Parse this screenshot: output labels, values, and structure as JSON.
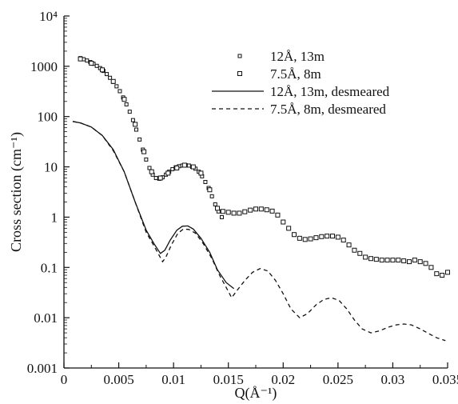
{
  "chart_data": {
    "type": "scatter",
    "title": "",
    "xlabel": "Q(Å⁻¹)",
    "ylabel": "Cross section (cm⁻¹)",
    "xlim": [
      0,
      0.035
    ],
    "ylim": [
      0.001,
      10000
    ],
    "yscale": "log",
    "grid": false,
    "legend_position": "top-right",
    "x_ticks": [
      "0",
      "0.005",
      "0.01",
      "0.015",
      "0.02",
      "0.025",
      "0.03",
      "0.035"
    ],
    "y_ticks": [
      "0.001",
      "0.01",
      "0.1",
      "1",
      "10",
      "100",
      "1000",
      "10⁴"
    ],
    "series": [
      {
        "name": "12Å, 13m",
        "style": "small-square-markers",
        "points": [
          [
            0.0015,
            1450
          ],
          [
            0.0018,
            1380
          ],
          [
            0.0021,
            1300
          ],
          [
            0.0024,
            1210
          ],
          [
            0.0027,
            1120
          ],
          [
            0.003,
            1020
          ],
          [
            0.0033,
            920
          ],
          [
            0.0036,
            810
          ],
          [
            0.0039,
            700
          ],
          [
            0.0042,
            590
          ],
          [
            0.0045,
            490
          ],
          [
            0.0048,
            400
          ],
          [
            0.0051,
            320
          ],
          [
            0.0054,
            240
          ],
          [
            0.0057,
            175
          ],
          [
            0.006,
            125
          ],
          [
            0.0063,
            85
          ],
          [
            0.0066,
            55
          ],
          [
            0.0069,
            35
          ],
          [
            0.0072,
            22
          ],
          [
            0.0075,
            14
          ],
          [
            0.0078,
            9.5
          ],
          [
            0.0081,
            7
          ],
          [
            0.0084,
            6
          ],
          [
            0.0087,
            5.8
          ],
          [
            0.009,
            6.2
          ],
          [
            0.0093,
            7
          ],
          [
            0.0096,
            8
          ],
          [
            0.0099,
            9
          ],
          [
            0.0102,
            9.8
          ],
          [
            0.0105,
            10.3
          ],
          [
            0.0108,
            10.6
          ],
          [
            0.0111,
            10.8
          ],
          [
            0.0114,
            10.6
          ],
          [
            0.0117,
            10
          ],
          [
            0.012,
            9.2
          ],
          [
            0.0123,
            8
          ],
          [
            0.0126,
            6.5
          ],
          [
            0.0129,
            5
          ],
          [
            0.0132,
            3.8
          ],
          [
            0.0135,
            2.6
          ],
          [
            0.0138,
            1.8
          ],
          [
            0.0141,
            1.3
          ],
          [
            0.0144,
            1
          ]
        ]
      },
      {
        "name": "7.5Å, 8m",
        "style": "larger-square-markers",
        "points": [
          [
            0.0015,
            1400
          ],
          [
            0.0025,
            1150
          ],
          [
            0.0035,
            850
          ],
          [
            0.0045,
            500
          ],
          [
            0.0055,
            220
          ],
          [
            0.0065,
            70
          ],
          [
            0.0073,
            20
          ],
          [
            0.008,
            8
          ],
          [
            0.0088,
            6
          ],
          [
            0.0095,
            7.5
          ],
          [
            0.0103,
            9.5
          ],
          [
            0.011,
            10.8
          ],
          [
            0.0118,
            10
          ],
          [
            0.0125,
            7.5
          ],
          [
            0.0133,
            3.5
          ],
          [
            0.014,
            1.5
          ],
          [
            0.0145,
            1.3
          ],
          [
            0.015,
            1.25
          ],
          [
            0.0155,
            1.2
          ],
          [
            0.016,
            1.2
          ],
          [
            0.0165,
            1.28
          ],
          [
            0.017,
            1.38
          ],
          [
            0.0175,
            1.45
          ],
          [
            0.018,
            1.45
          ],
          [
            0.0185,
            1.4
          ],
          [
            0.019,
            1.32
          ],
          [
            0.0195,
            1.1
          ],
          [
            0.02,
            0.8
          ],
          [
            0.0205,
            0.6
          ],
          [
            0.021,
            0.45
          ],
          [
            0.0215,
            0.38
          ],
          [
            0.022,
            0.36
          ],
          [
            0.0225,
            0.37
          ],
          [
            0.023,
            0.39
          ],
          [
            0.0235,
            0.41
          ],
          [
            0.024,
            0.42
          ],
          [
            0.0245,
            0.42
          ],
          [
            0.025,
            0.4
          ],
          [
            0.0255,
            0.35
          ],
          [
            0.026,
            0.28
          ],
          [
            0.0265,
            0.22
          ],
          [
            0.027,
            0.19
          ],
          [
            0.0275,
            0.16
          ],
          [
            0.028,
            0.15
          ],
          [
            0.0285,
            0.145
          ],
          [
            0.029,
            0.14
          ],
          [
            0.0295,
            0.14
          ],
          [
            0.03,
            0.14
          ],
          [
            0.0305,
            0.14
          ],
          [
            0.031,
            0.135
          ],
          [
            0.0315,
            0.13
          ],
          [
            0.032,
            0.14
          ],
          [
            0.0325,
            0.13
          ],
          [
            0.033,
            0.12
          ],
          [
            0.0335,
            0.1
          ],
          [
            0.034,
            0.075
          ],
          [
            0.0345,
            0.07
          ],
          [
            0.035,
            0.08
          ]
        ]
      },
      {
        "name": "12Å, 13m, desmeared",
        "style": "solid-line",
        "points": [
          [
            0.0008,
            80
          ],
          [
            0.0015,
            75
          ],
          [
            0.0025,
            62
          ],
          [
            0.0035,
            42
          ],
          [
            0.0045,
            22
          ],
          [
            0.0055,
            8
          ],
          [
            0.0065,
            2
          ],
          [
            0.0075,
            0.55
          ],
          [
            0.0082,
            0.3
          ],
          [
            0.0088,
            0.19
          ],
          [
            0.0092,
            0.22
          ],
          [
            0.0097,
            0.35
          ],
          [
            0.0103,
            0.55
          ],
          [
            0.0108,
            0.66
          ],
          [
            0.0113,
            0.67
          ],
          [
            0.0118,
            0.58
          ],
          [
            0.0125,
            0.38
          ],
          [
            0.0133,
            0.2
          ],
          [
            0.014,
            0.09
          ],
          [
            0.0148,
            0.05
          ],
          [
            0.0155,
            0.038
          ]
        ]
      },
      {
        "name": "7.5Å, 8m, desmeared",
        "style": "dashed-line",
        "points": [
          [
            0.0008,
            80
          ],
          [
            0.0015,
            75
          ],
          [
            0.0025,
            62
          ],
          [
            0.0035,
            42
          ],
          [
            0.0045,
            21
          ],
          [
            0.0055,
            8
          ],
          [
            0.0065,
            2
          ],
          [
            0.0075,
            0.5
          ],
          [
            0.0083,
            0.25
          ],
          [
            0.009,
            0.13
          ],
          [
            0.0093,
            0.16
          ],
          [
            0.0098,
            0.28
          ],
          [
            0.0104,
            0.48
          ],
          [
            0.0109,
            0.58
          ],
          [
            0.0114,
            0.57
          ],
          [
            0.012,
            0.48
          ],
          [
            0.0127,
            0.3
          ],
          [
            0.0135,
            0.15
          ],
          [
            0.0142,
            0.07
          ],
          [
            0.0148,
            0.04
          ],
          [
            0.0153,
            0.025
          ],
          [
            0.0158,
            0.035
          ],
          [
            0.0165,
            0.055
          ],
          [
            0.0172,
            0.08
          ],
          [
            0.0179,
            0.095
          ],
          [
            0.0186,
            0.085
          ],
          [
            0.0193,
            0.055
          ],
          [
            0.02,
            0.03
          ],
          [
            0.0207,
            0.015
          ],
          [
            0.0215,
            0.01
          ],
          [
            0.0222,
            0.012
          ],
          [
            0.023,
            0.018
          ],
          [
            0.0237,
            0.023
          ],
          [
            0.0244,
            0.025
          ],
          [
            0.0251,
            0.022
          ],
          [
            0.0258,
            0.015
          ],
          [
            0.0265,
            0.009
          ],
          [
            0.0272,
            0.006
          ],
          [
            0.028,
            0.005
          ],
          [
            0.0288,
            0.0055
          ],
          [
            0.0296,
            0.0065
          ],
          [
            0.0303,
            0.0072
          ],
          [
            0.031,
            0.0075
          ],
          [
            0.0317,
            0.0072
          ],
          [
            0.0325,
            0.006
          ],
          [
            0.0333,
            0.0048
          ],
          [
            0.034,
            0.004
          ],
          [
            0.0348,
            0.0035
          ]
        ]
      }
    ],
    "colors": {
      "ink": "#111111",
      "background": "#ffffff"
    }
  }
}
